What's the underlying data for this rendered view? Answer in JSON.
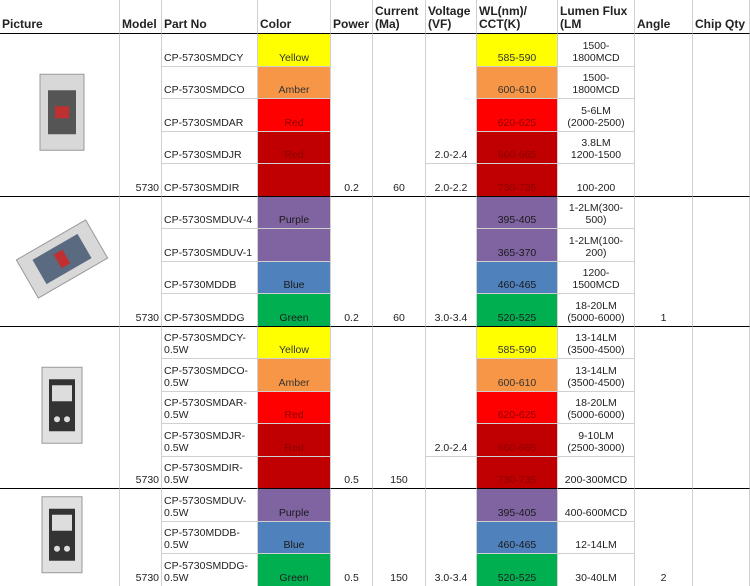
{
  "header": [
    "Picture",
    "Model",
    "Part No",
    "Color",
    "Power",
    "Current\n(Ma)",
    "Voltage\n(VF)",
    "WL(nm)/\nCCT(K)",
    "Lumen Flux\n(LM",
    "Angle",
    "Chip Qty"
  ],
  "groups": [
    {
      "model": "5730",
      "power": "0.2",
      "current": "60",
      "voltage": [
        {
          "text": "2.0-2.4",
          "rows": 4
        },
        {
          "text": "2.0-2.2",
          "rows": 1
        }
      ],
      "rows": [
        {
          "part": "CP-5730SMDCY",
          "color": "Yellow",
          "fill": "#ffff00",
          "wl": "585-590",
          "lumen": "1500-1800MCD"
        },
        {
          "part": "CP-5730SMDCO",
          "color": "Amber",
          "fill": "#f79646",
          "wl": "600-610",
          "lumen": "1500-1800MCD"
        },
        {
          "part": "CP-5730SMDAR",
          "color": "Red",
          "fill": "#ff0000",
          "wl": "620-625",
          "lumen": "5-6LM\n(2000-2500)"
        },
        {
          "part": "CP-5730SMDJR",
          "color": "Red",
          "fill": "#c00000",
          "wl": "660-665",
          "lumen": "3.8LM\n1200-1500"
        },
        {
          "part": "CP-5730SMDIR",
          "fill": "#c00000",
          "wl": "730-735",
          "lumen": "100-200"
        }
      ]
    },
    {
      "model": "5730",
      "power": "0.2",
      "current": "60",
      "voltage": [
        {
          "text": "3.0-3.4",
          "rows": 4
        }
      ],
      "angle": "1",
      "rows": [
        {
          "part": "CP-5730SMDUV-4",
          "color": "Purple",
          "fill": "#8064a2",
          "wl": "395-405",
          "lumen": "1-2LM(300-500)"
        },
        {
          "part": "CP-5730SMDUV-1",
          "fill": "#8064a2",
          "wl": "365-370",
          "lumen": "1-2LM(100-200)"
        },
        {
          "part": "CP-5730MDDB",
          "color": "Blue",
          "fill": "#4f81bd",
          "wl": "460-465",
          "lumen": "1200-1500MCD"
        },
        {
          "part": "CP-5730SMDDG",
          "color": "Green",
          "fill": "#00b050",
          "wl": "520-525",
          "lumen": "18-20LM\n(5000-6000)"
        }
      ]
    },
    {
      "model": "5730",
      "power": "0.5",
      "current": "150",
      "voltage": [
        {
          "text": "2.0-2.4",
          "rows": 4
        },
        {
          "rows": 1
        }
      ],
      "rows": [
        {
          "part": "CP-5730SMDCY-\n0.5W",
          "color": "Yellow",
          "fill": "#ffff00",
          "wl": "585-590",
          "lumen": "13-14LM\n(3500-4500)"
        },
        {
          "part": "CP-5730SMDCO-\n0.5W",
          "color": "Amber",
          "fill": "#f79646",
          "wl": "600-610",
          "lumen": "13-14LM\n(3500-4500)"
        },
        {
          "part": "CP-5730SMDAR-\n0.5W",
          "color": "Red",
          "fill": "#ff0000",
          "wl": "620-625",
          "lumen": "18-20LM\n(5000-6000)"
        },
        {
          "part": "CP-5730SMDJR-\n0.5W",
          "color": "Red",
          "fill": "#c00000",
          "wl": "660-665",
          "lumen": "9-10LM\n(2500-3000)"
        },
        {
          "part": "CP-5730SMDIR-\n0.5W",
          "fill": "#c00000",
          "wl": "730-735",
          "lumen": "200-300MCD"
        }
      ]
    },
    {
      "model": "5730",
      "power": "0.5",
      "current": "150",
      "voltage": [
        {
          "text": "3.0-3.4",
          "rows": 3
        }
      ],
      "angle": "2",
      "rows": [
        {
          "part": "CP-5730SMDUV-\n0.5W",
          "color": "Purple",
          "fill": "#8064a2",
          "wl": "395-405",
          "lumen": "400-600MCD"
        },
        {
          "part": "CP-5730MDDB-\n0.5W",
          "color": "Blue",
          "fill": "#4f81bd",
          "wl": "460-465",
          "lumen": "12-14LM"
        },
        {
          "part": "CP-5730SMDDG-\n0.5W",
          "color": "Green",
          "fill": "#00b050",
          "wl": "520-525",
          "lumen": "30-40LM"
        }
      ]
    }
  ]
}
